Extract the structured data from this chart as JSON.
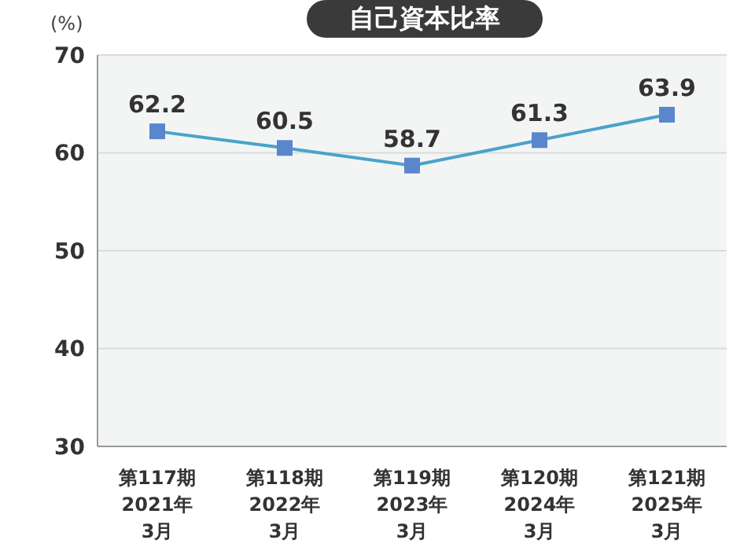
{
  "chart_data": {
    "type": "line",
    "title": "自己資本比率",
    "ylabel": "(%)",
    "categories": [
      "第117期\n2021年\n3月",
      "第118期\n2022年\n3月",
      "第119期\n2023年\n3月",
      "第120期\n2024年\n3月",
      "第121期\n2025年\n3月"
    ],
    "series": [
      {
        "color": "#4aa3c9",
        "values": [
          62.2,
          60.5,
          58.7,
          61.3,
          63.9
        ]
      }
    ],
    "ylim": [
      30,
      70
    ],
    "yticks": [
      30,
      40,
      50,
      60,
      70
    ],
    "grid": "y",
    "marker": "square",
    "data_labels": true
  }
}
